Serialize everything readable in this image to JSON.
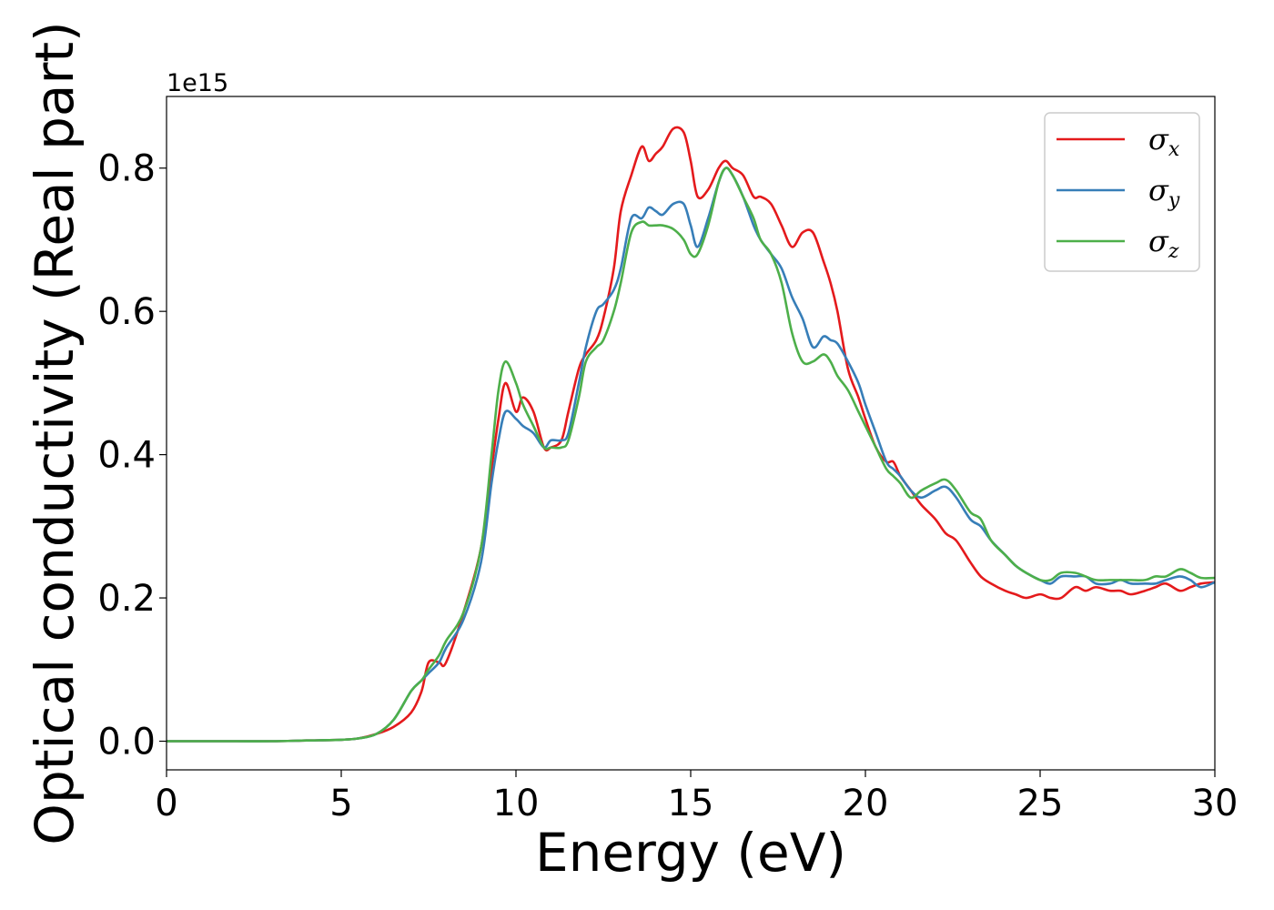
{
  "chart_data": {
    "type": "line",
    "xlabel": "Energy (eV)",
    "ylabel": "Optical conductivity (Real part)",
    "y_offset_text": "1e15",
    "y_scale": 1000000000000000.0,
    "xlim": [
      0,
      30
    ],
    "ylim": [
      -0.04,
      0.9
    ],
    "xticks": [
      0,
      5,
      10,
      15,
      20,
      25,
      30
    ],
    "xtick_labels": [
      "0",
      "5",
      "10",
      "15",
      "20",
      "25",
      "30"
    ],
    "yticks": [
      0.0,
      0.2,
      0.4,
      0.6,
      0.8
    ],
    "ytick_labels": [
      "0.0",
      "0.2",
      "0.4",
      "0.6",
      "0.8"
    ],
    "grid": false,
    "legend_position": "top-right",
    "x": [
      0,
      1,
      2,
      3,
      4,
      5,
      5.5,
      6,
      6.5,
      7,
      7.3,
      7.5,
      7.8,
      8,
      8.5,
      9,
      9.3,
      9.5,
      9.7,
      10,
      10.2,
      10.5,
      10.8,
      11,
      11.3,
      11.5,
      11.8,
      12,
      12.3,
      12.5,
      12.8,
      13,
      13.3,
      13.6,
      13.8,
      14,
      14.2,
      14.5,
      14.8,
      15,
      15.2,
      15.5,
      15.8,
      16,
      16.2,
      16.5,
      16.8,
      17,
      17.3,
      17.6,
      17.9,
      18.2,
      18.5,
      18.8,
      19,
      19.2,
      19.5,
      19.8,
      20,
      20.3,
      20.6,
      20.8,
      21,
      21.3,
      21.6,
      22,
      22.3,
      22.6,
      23,
      23.3,
      23.6,
      24,
      24.3,
      24.6,
      25,
      25.3,
      25.6,
      26,
      26.3,
      26.6,
      27,
      27.3,
      27.6,
      28,
      28.3,
      28.6,
      29,
      29.3,
      29.6,
      30
    ],
    "series": [
      {
        "name": "σx",
        "label_base": "σ",
        "label_sub": "x",
        "color": "#e41a1c",
        "values": [
          0,
          0,
          0,
          0,
          0.001,
          0.002,
          0.004,
          0.01,
          0.02,
          0.04,
          0.07,
          0.11,
          0.11,
          0.11,
          0.18,
          0.27,
          0.38,
          0.45,
          0.5,
          0.46,
          0.48,
          0.46,
          0.41,
          0.41,
          0.42,
          0.46,
          0.52,
          0.54,
          0.56,
          0.59,
          0.66,
          0.74,
          0.79,
          0.83,
          0.81,
          0.82,
          0.83,
          0.855,
          0.85,
          0.81,
          0.76,
          0.77,
          0.8,
          0.81,
          0.8,
          0.79,
          0.76,
          0.76,
          0.75,
          0.72,
          0.69,
          0.71,
          0.71,
          0.67,
          0.64,
          0.6,
          0.52,
          0.48,
          0.45,
          0.41,
          0.39,
          0.39,
          0.37,
          0.35,
          0.33,
          0.31,
          0.29,
          0.28,
          0.25,
          0.23,
          0.22,
          0.21,
          0.205,
          0.2,
          0.205,
          0.2,
          0.2,
          0.215,
          0.21,
          0.215,
          0.21,
          0.21,
          0.205,
          0.21,
          0.215,
          0.22,
          0.21,
          0.215,
          0.22,
          0.222
        ]
      },
      {
        "name": "σy",
        "label_base": "σ",
        "label_sub": "y",
        "color": "#377eb8",
        "values": [
          0,
          0,
          0,
          0,
          0.001,
          0.002,
          0.004,
          0.01,
          0.03,
          0.07,
          0.085,
          0.095,
          0.11,
          0.13,
          0.17,
          0.25,
          0.36,
          0.42,
          0.46,
          0.45,
          0.44,
          0.43,
          0.41,
          0.42,
          0.42,
          0.43,
          0.5,
          0.55,
          0.6,
          0.61,
          0.63,
          0.66,
          0.73,
          0.73,
          0.745,
          0.74,
          0.735,
          0.75,
          0.75,
          0.72,
          0.69,
          0.73,
          0.78,
          0.8,
          0.79,
          0.76,
          0.72,
          0.7,
          0.68,
          0.66,
          0.62,
          0.59,
          0.55,
          0.565,
          0.56,
          0.555,
          0.53,
          0.5,
          0.47,
          0.43,
          0.39,
          0.38,
          0.37,
          0.35,
          0.34,
          0.35,
          0.355,
          0.34,
          0.31,
          0.3,
          0.28,
          0.26,
          0.245,
          0.235,
          0.225,
          0.22,
          0.23,
          0.23,
          0.23,
          0.22,
          0.22,
          0.225,
          0.22,
          0.22,
          0.22,
          0.225,
          0.23,
          0.225,
          0.215,
          0.222
        ]
      },
      {
        "name": "σz",
        "label_base": "σ",
        "label_sub": "z",
        "color": "#4daf4a",
        "values": [
          0,
          0,
          0,
          0,
          0.001,
          0.002,
          0.004,
          0.01,
          0.03,
          0.07,
          0.085,
          0.1,
          0.12,
          0.14,
          0.18,
          0.27,
          0.4,
          0.49,
          0.53,
          0.5,
          0.47,
          0.44,
          0.41,
          0.41,
          0.41,
          0.42,
          0.48,
          0.53,
          0.55,
          0.56,
          0.6,
          0.64,
          0.71,
          0.725,
          0.72,
          0.72,
          0.72,
          0.715,
          0.7,
          0.68,
          0.68,
          0.72,
          0.78,
          0.8,
          0.79,
          0.76,
          0.73,
          0.7,
          0.68,
          0.64,
          0.57,
          0.53,
          0.53,
          0.54,
          0.53,
          0.51,
          0.49,
          0.46,
          0.44,
          0.41,
          0.38,
          0.37,
          0.36,
          0.34,
          0.35,
          0.36,
          0.365,
          0.35,
          0.32,
          0.31,
          0.28,
          0.26,
          0.245,
          0.235,
          0.225,
          0.225,
          0.235,
          0.235,
          0.23,
          0.225,
          0.225,
          0.225,
          0.225,
          0.225,
          0.23,
          0.23,
          0.24,
          0.235,
          0.228,
          0.228
        ]
      }
    ]
  }
}
